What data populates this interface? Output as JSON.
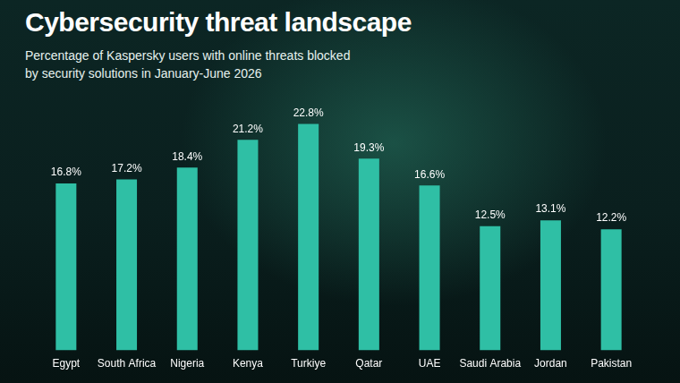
{
  "chart_data": {
    "type": "bar",
    "title": "Cybersecurity threat landscape",
    "subtitle": "Percentage of Kaspersky users with online threats blocked by security solutions in January-June 2026",
    "categories": [
      "Egypt",
      "South Africa",
      "Nigeria",
      "Kenya",
      "Turkiye",
      "Qatar",
      "UAE",
      "Saudi Arabia",
      "Jordan",
      "Pakistan"
    ],
    "values": [
      16.8,
      17.2,
      18.4,
      21.2,
      22.8,
      19.3,
      16.6,
      12.5,
      13.1,
      12.2
    ],
    "value_labels": [
      "16.8%",
      "17.2%",
      "18.4%",
      "21.2%",
      "22.8%",
      "19.3%",
      "16.6%",
      "12.5%",
      "13.1%",
      "12.2%"
    ],
    "color": "#2fbfa5",
    "ylim": [
      0,
      25
    ],
    "grid": false,
    "data_labels": true,
    "tick_labels": "x"
  }
}
